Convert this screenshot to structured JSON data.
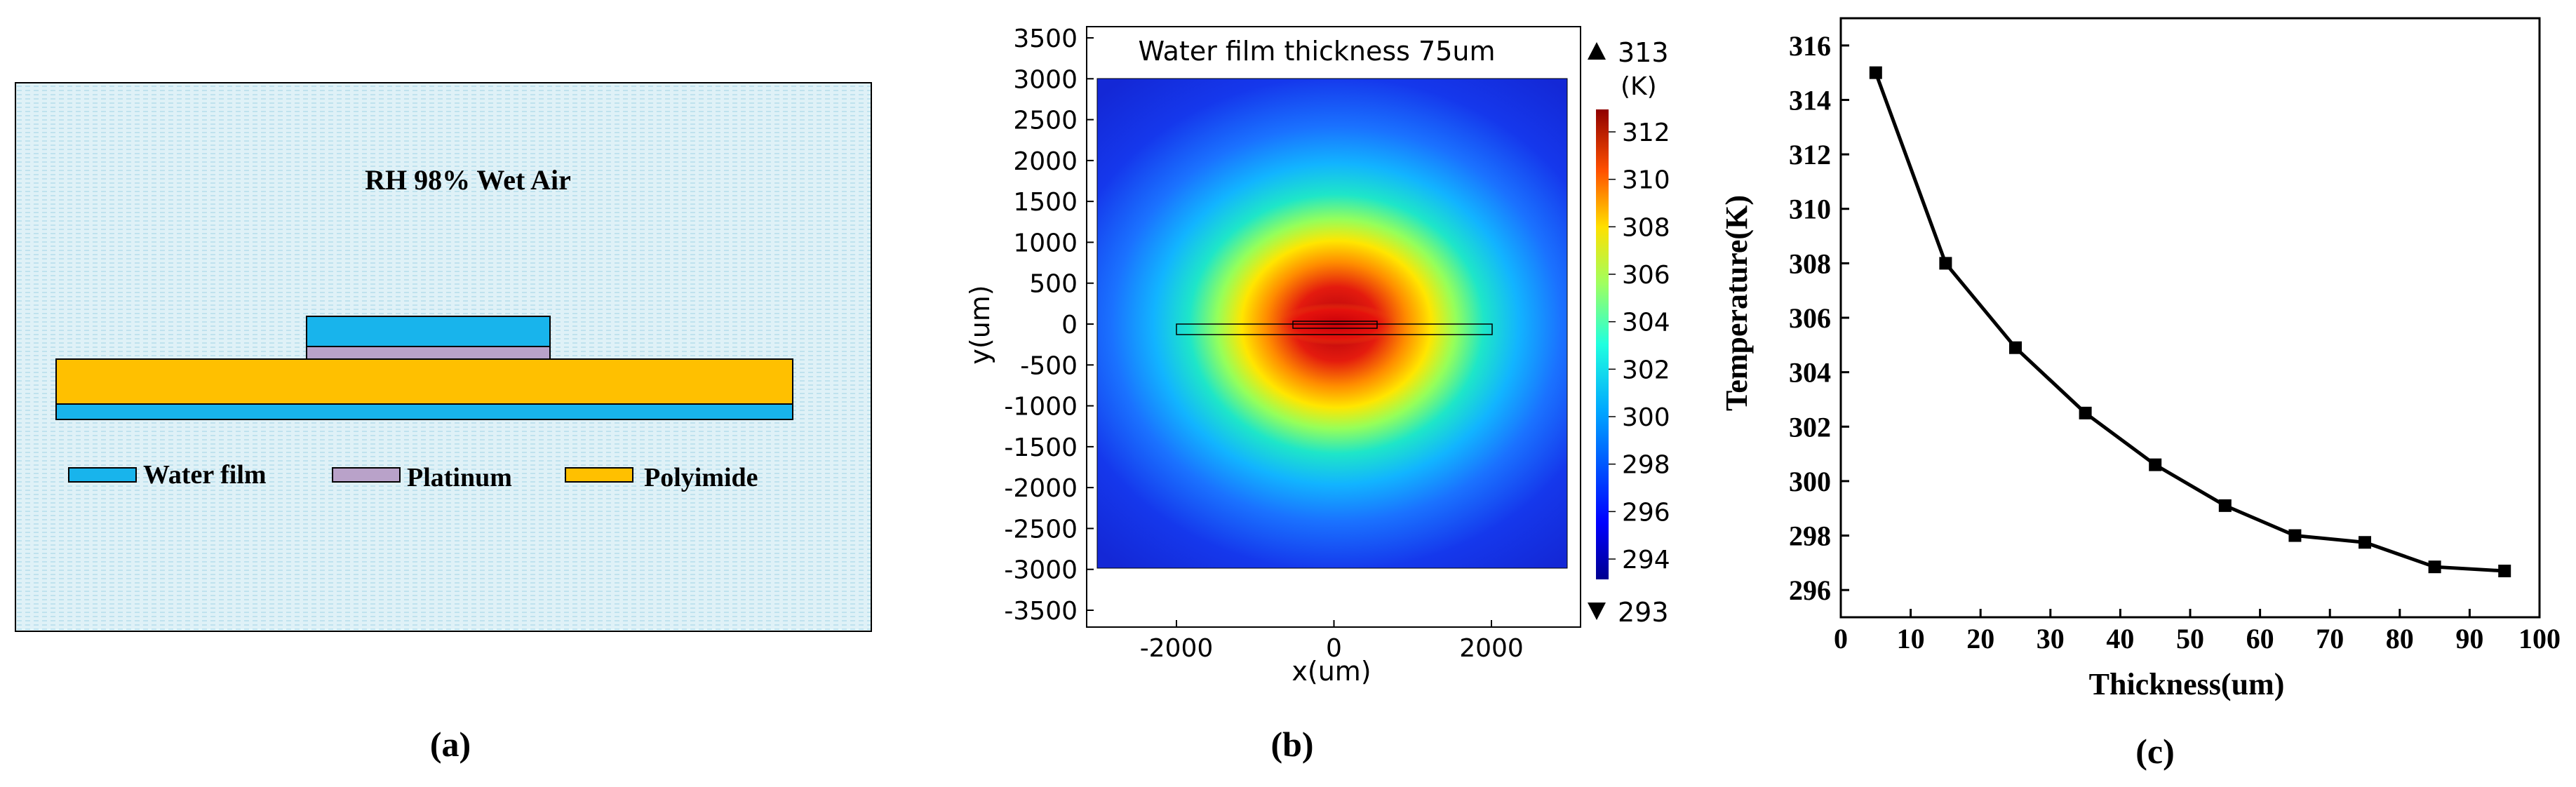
{
  "panel_a": {
    "caption": "(a)",
    "environment_label": "RH 98% Wet Air",
    "legend": [
      {
        "label": "Water film",
        "color": "#18b4ec"
      },
      {
        "label": "Platinum",
        "color": "#b9a2c9"
      },
      {
        "label": "Polyimide",
        "color": "#ffc000"
      }
    ],
    "background_color": "#dff1f7"
  },
  "panel_b": {
    "caption": "(b)",
    "title": "Water film thickness 75um",
    "xlabel": "x(um)",
    "ylabel": "y(um)",
    "x_ticks": [
      "-2000",
      "0",
      "2000"
    ],
    "y_ticks": [
      "3500",
      "3000",
      "2500",
      "2000",
      "1500",
      "1000",
      "500",
      "0",
      "-500",
      "-1000",
      "-1500",
      "-2000",
      "-2500",
      "-3000",
      "-3500"
    ],
    "colorbar": {
      "max_label": "313",
      "unit_label": "(K)",
      "min_label": "293",
      "ticks": [
        "312",
        "310",
        "308",
        "306",
        "304",
        "302",
        "300",
        "298",
        "296",
        "294"
      ],
      "colormap": "jet"
    }
  },
  "chart_data": {
    "type": "line",
    "caption": "(c)",
    "xlabel": "Thickness(um)",
    "ylabel": "Temperature(K)",
    "xlim": [
      0,
      100
    ],
    "ylim": [
      295,
      317
    ],
    "x_ticks": [
      0,
      10,
      20,
      30,
      40,
      50,
      60,
      70,
      80,
      90,
      100
    ],
    "y_ticks": [
      296,
      298,
      300,
      302,
      304,
      306,
      308,
      310,
      312,
      314,
      316
    ],
    "x": [
      5,
      15,
      25,
      35,
      45,
      55,
      65,
      75,
      85,
      95
    ],
    "y": [
      315.0,
      308.0,
      304.9,
      302.5,
      300.6,
      299.1,
      298.0,
      297.75,
      296.85,
      296.7
    ],
    "marker": "square",
    "line_color": "#000000"
  }
}
